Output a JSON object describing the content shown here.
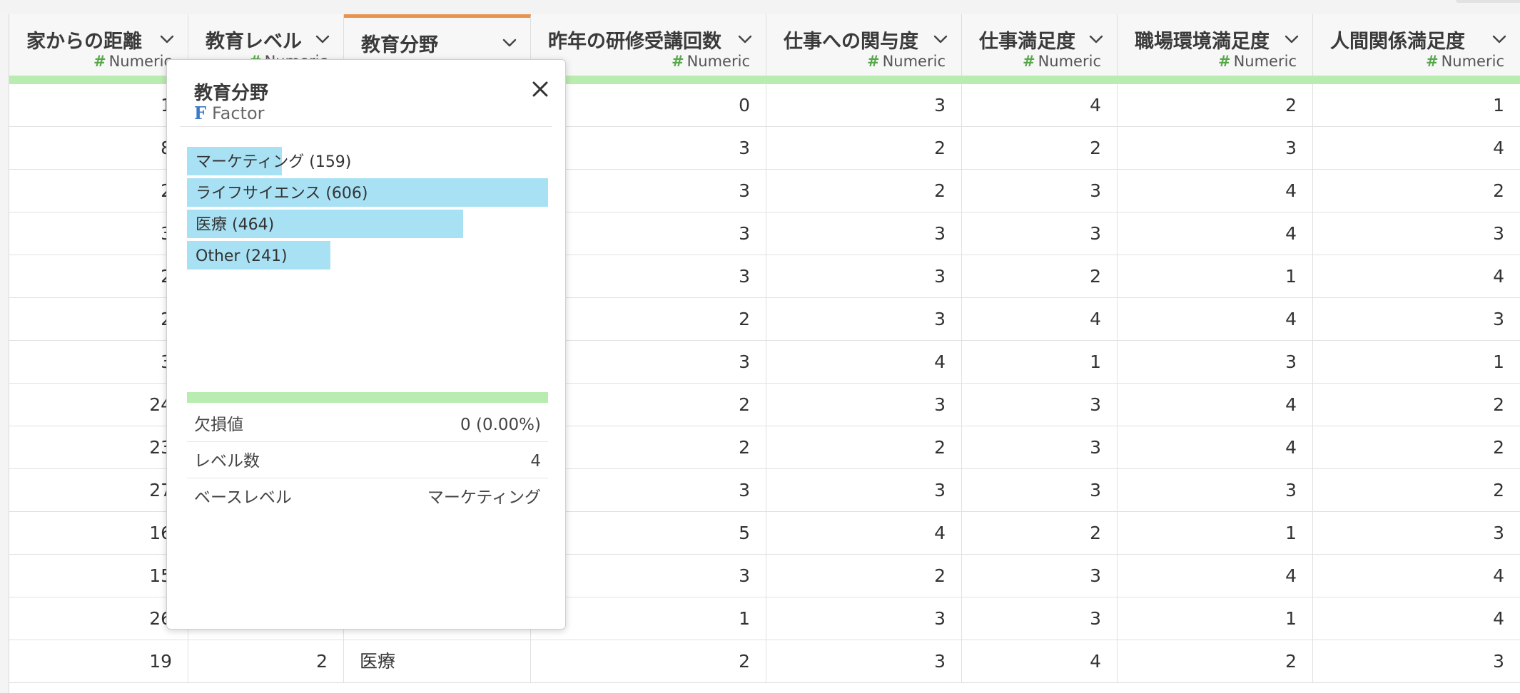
{
  "columns": [
    {
      "name": "家からの距離",
      "type": "Numeric",
      "type_icon": "hash-icon"
    },
    {
      "name": "教育レベル",
      "type": "Numeric",
      "type_icon": "hash-icon"
    },
    {
      "name": "教育分野",
      "type": "Factor",
      "type_icon": "factor-icon"
    },
    {
      "name": "昨年の研修受講回数",
      "type": "Numeric",
      "type_icon": "hash-icon"
    },
    {
      "name": "仕事への関与度",
      "type": "Numeric",
      "type_icon": "hash-icon"
    },
    {
      "name": "仕事満足度",
      "type": "Numeric",
      "type_icon": "hash-icon"
    },
    {
      "name": "職場環境満足度",
      "type": "Numeric",
      "type_icon": "hash-icon"
    },
    {
      "name": "人間関係満足度",
      "type": "Numeric",
      "type_icon": "hash-icon"
    }
  ],
  "rows": [
    [
      "1",
      "",
      "",
      "0",
      "3",
      "4",
      "2",
      "1"
    ],
    [
      "8",
      "",
      "",
      "3",
      "2",
      "2",
      "3",
      "4"
    ],
    [
      "2",
      "",
      "",
      "3",
      "2",
      "3",
      "4",
      "2"
    ],
    [
      "3",
      "",
      "",
      "3",
      "3",
      "3",
      "4",
      "3"
    ],
    [
      "2",
      "",
      "",
      "3",
      "3",
      "2",
      "1",
      "4"
    ],
    [
      "2",
      "",
      "",
      "2",
      "3",
      "4",
      "4",
      "3"
    ],
    [
      "3",
      "",
      "",
      "3",
      "4",
      "1",
      "3",
      "1"
    ],
    [
      "24",
      "",
      "",
      "2",
      "3",
      "3",
      "4",
      "2"
    ],
    [
      "23",
      "",
      "",
      "2",
      "2",
      "3",
      "4",
      "2"
    ],
    [
      "27",
      "",
      "",
      "3",
      "3",
      "3",
      "3",
      "2"
    ],
    [
      "16",
      "",
      "",
      "5",
      "4",
      "2",
      "1",
      "3"
    ],
    [
      "15",
      "",
      "",
      "3",
      "2",
      "3",
      "4",
      "4"
    ],
    [
      "26",
      "",
      "",
      "1",
      "3",
      "3",
      "1",
      "4"
    ],
    [
      "19",
      "2",
      "医療",
      "2",
      "3",
      "4",
      "2",
      "3"
    ]
  ],
  "popup": {
    "title": "教育分野",
    "type_label": "Factor",
    "levels": [
      {
        "label": "マーケティング (159)",
        "count": 159
      },
      {
        "label": "ライフサイエンス (606)",
        "count": 606
      },
      {
        "label": "医療 (464)",
        "count": 464
      },
      {
        "label": "Other (241)",
        "count": 241
      }
    ],
    "stats": [
      {
        "label": "欠損値",
        "value": "0 (0.00%)"
      },
      {
        "label": "レベル数",
        "value": "4"
      },
      {
        "label": "ベースレベル",
        "value": "マーケティング"
      }
    ]
  },
  "colors": {
    "active_column_accent": "#e8944f",
    "numeric_icon": "#58a84a",
    "factor_icon": "#3d7bc7",
    "bar_fill": "#a8e1f3",
    "quality_bar": "#b9ecb1"
  }
}
